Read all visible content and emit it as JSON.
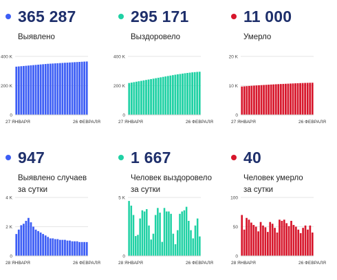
{
  "panels": [
    {
      "value": "365 287",
      "label_lines": [
        "Выявлено"
      ],
      "color": "#3d5ef5"
    },
    {
      "value": "295 171",
      "label_lines": [
        "Выздоровело"
      ],
      "color": "#1fd1a4"
    },
    {
      "value": "11 000",
      "label_lines": [
        "Умерло"
      ],
      "color": "#d7162b"
    },
    {
      "value": "947",
      "label_lines": [
        "Выявлено случаев",
        "за сутки"
      ],
      "color": "#3d5ef5"
    },
    {
      "value": "1 667",
      "label_lines": [
        "Человек выздоровело",
        "за сутки"
      ],
      "color": "#1fd1a4"
    },
    {
      "value": "40",
      "label_lines": [
        "Человек умерло",
        "за сутки"
      ],
      "color": "#d7162b"
    }
  ],
  "chart_data": [
    {
      "type": "bar",
      "color": "#3d5ef5",
      "y_ticks": [
        {
          "v": 0,
          "label": "0"
        },
        {
          "v": 200000,
          "label": "200 K"
        },
        {
          "v": 400000,
          "label": "400 K"
        }
      ],
      "ylim": [
        0,
        400000
      ],
      "x_labels": {
        "start": "27 ЯНВАРЯ",
        "end": "26 ФЕВРАЛЯ"
      },
      "values": [
        330000,
        331500,
        333000,
        334500,
        336000,
        337500,
        339000,
        340500,
        342000,
        343500,
        345000,
        346500,
        348000,
        349500,
        350500,
        351500,
        352500,
        353500,
        354500,
        355500,
        356500,
        357500,
        358500,
        359500,
        360500,
        361500,
        362500,
        363500,
        364500,
        365287
      ]
    },
    {
      "type": "bar",
      "color": "#1fd1a4",
      "y_ticks": [
        {
          "v": 0,
          "label": "0"
        },
        {
          "v": 200000,
          "label": "200 K"
        },
        {
          "v": 400000,
          "label": "400 K"
        }
      ],
      "ylim": [
        0,
        400000
      ],
      "x_labels": {
        "start": "27 ЯНВАРЯ",
        "end": "26 ФЕВРАЛЯ"
      },
      "values": [
        218000,
        221000,
        224000,
        227000,
        230000,
        233000,
        236000,
        239000,
        242000,
        245000,
        248000,
        251000,
        254000,
        257000,
        260000,
        263000,
        266000,
        269000,
        272000,
        275000,
        277500,
        280000,
        282500,
        285000,
        287000,
        289000,
        291000,
        292500,
        294000,
        295171
      ]
    },
    {
      "type": "bar",
      "color": "#d7162b",
      "y_ticks": [
        {
          "v": 0,
          "label": "0"
        },
        {
          "v": 10000,
          "label": "10 K"
        },
        {
          "v": 20000,
          "label": "20 K"
        }
      ],
      "ylim": [
        0,
        20000
      ],
      "x_labels": {
        "start": "27 ЯНВАРЯ",
        "end": "26 ФЕВРАЛЯ"
      },
      "values": [
        9700,
        9770,
        9840,
        9900,
        9960,
        10020,
        10080,
        10130,
        10180,
        10230,
        10280,
        10330,
        10380,
        10430,
        10480,
        10520,
        10560,
        10600,
        10640,
        10680,
        10720,
        10760,
        10800,
        10840,
        10870,
        10900,
        10930,
        10960,
        10980,
        11000
      ]
    },
    {
      "type": "bar",
      "color": "#3d5ef5",
      "y_ticks": [
        {
          "v": 0,
          "label": "0"
        },
        {
          "v": 2000,
          "label": "2 K"
        },
        {
          "v": 4000,
          "label": "4 K"
        }
      ],
      "ylim": [
        0,
        4000
      ],
      "x_labels": {
        "start": "28 ЯНВАРЯ",
        "end": "26 ФЕВРАЛЯ"
      },
      "values": [
        1500,
        1800,
        2100,
        2200,
        2400,
        2600,
        2300,
        2000,
        1800,
        1700,
        1600,
        1500,
        1400,
        1300,
        1200,
        1200,
        1150,
        1150,
        1100,
        1100,
        1100,
        1050,
        1050,
        1000,
        1000,
        1000,
        950,
        950,
        950,
        947
      ]
    },
    {
      "type": "bar",
      "color": "#1fd1a4",
      "y_ticks": [
        {
          "v": 0,
          "label": "0"
        },
        {
          "v": 5000,
          "label": "5 K"
        }
      ],
      "ylim": [
        0,
        5000
      ],
      "x_labels": {
        "start": "28 ЯНВАРЯ",
        "end": "26 ФЕВРАЛЯ"
      },
      "values": [
        4700,
        4300,
        3500,
        1700,
        1800,
        3200,
        3900,
        3800,
        4000,
        2600,
        1400,
        1900,
        3500,
        4100,
        3700,
        1200,
        4100,
        3800,
        3800,
        3600,
        1900,
        1000,
        2200,
        3600,
        3800,
        3900,
        4200,
        3000,
        2200,
        1500,
        2600,
        3200,
        1667
      ]
    },
    {
      "type": "bar",
      "color": "#d7162b",
      "y_ticks": [
        {
          "v": 0,
          "label": "0"
        },
        {
          "v": 50,
          "label": "50"
        },
        {
          "v": 100,
          "label": "100"
        }
      ],
      "ylim": [
        0,
        100
      ],
      "x_labels": {
        "start": "28 ЯНВАРЯ",
        "end": "26 ФЕВРАЛЯ"
      },
      "values": [
        70,
        45,
        65,
        62,
        57,
        53,
        50,
        42,
        58,
        52,
        49,
        41,
        58,
        55,
        48,
        40,
        62,
        60,
        62,
        56,
        51,
        60,
        53,
        50,
        45,
        39,
        48,
        52,
        45,
        52,
        40
      ]
    }
  ]
}
